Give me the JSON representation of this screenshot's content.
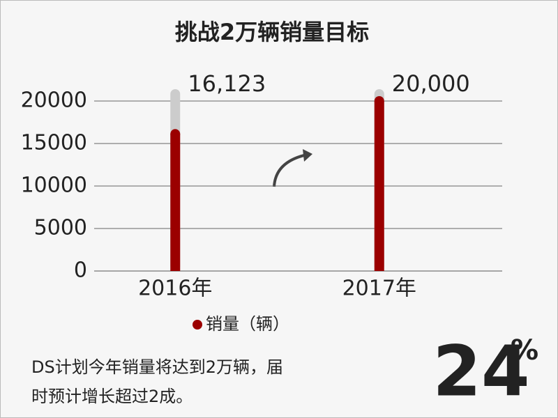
{
  "chart_data": {
    "type": "bar",
    "title": "挑战2万辆销量目标",
    "categories": [
      "2016年",
      "2017年"
    ],
    "series": [
      {
        "name": "销量（辆）",
        "color": "#9b0000",
        "values": [
          16123,
          20000
        ],
        "value_labels": [
          "16,123",
          "20,000"
        ]
      }
    ],
    "ylim": [
      0,
      20000
    ],
    "yticks": [
      0,
      5000,
      10000,
      15000,
      20000
    ],
    "grid": true
  },
  "note": {
    "lines": [
      "DS计划今年销量将达到2万辆，届",
      "时预计增长超过2成。"
    ]
  },
  "highlight": {
    "number": "24",
    "unit": "%"
  }
}
